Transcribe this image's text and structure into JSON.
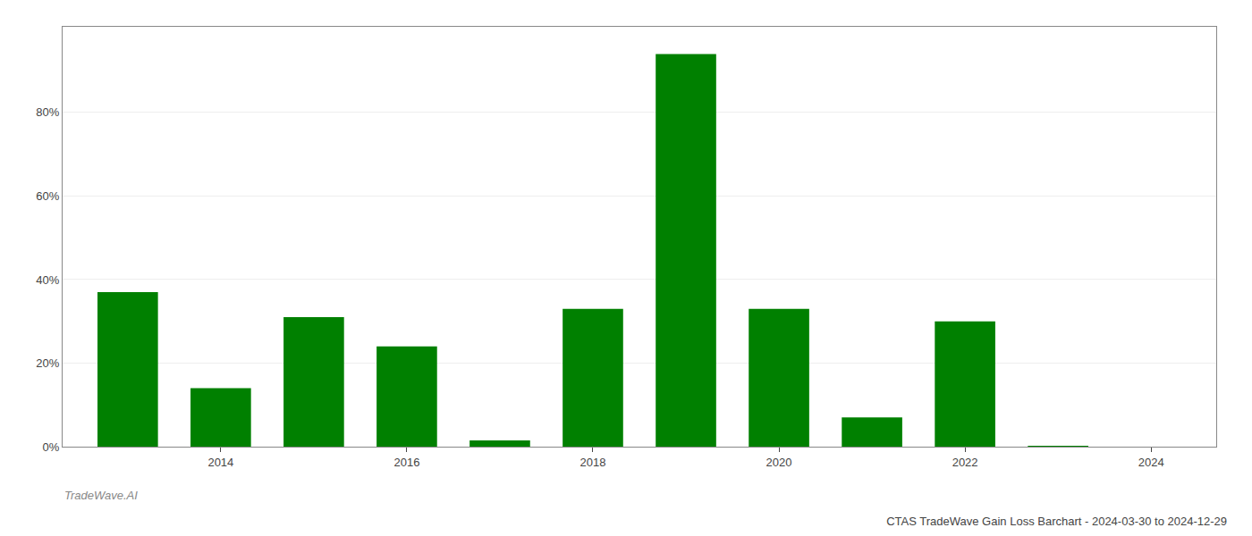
{
  "chart_data": {
    "type": "bar",
    "title": "CTAS TradeWave Gain Loss Barchart - 2024-03-30 to 2024-12-29",
    "annotations": [
      "TradeWave.AI"
    ],
    "x": [
      2013,
      2014,
      2015,
      2016,
      2017,
      2018,
      2019,
      2020,
      2021,
      2022,
      2023
    ],
    "values": [
      0.37,
      0.14,
      0.31,
      0.24,
      0.015,
      0.33,
      0.94,
      0.33,
      0.07,
      0.3,
      0.001
    ],
    "color": "#008000",
    "xlim": [
      2012.3,
      2024.7
    ],
    "xticks": [
      2014,
      2016,
      2018,
      2020,
      2022,
      2024
    ],
    "ylim": [
      0,
      1.005
    ],
    "yticks": [
      {
        "value": 0.0,
        "label": "0%"
      },
      {
        "value": 0.2,
        "label": "20%"
      },
      {
        "value": 0.4,
        "label": "40%"
      },
      {
        "value": 0.6,
        "label": "60%"
      },
      {
        "value": 0.8,
        "label": "80%"
      }
    ],
    "grid": true
  }
}
